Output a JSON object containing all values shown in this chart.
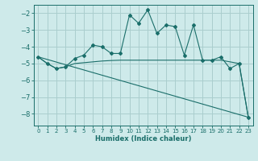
{
  "xlabel": "Humidex (Indice chaleur)",
  "background_color": "#ceeaea",
  "grid_color": "#aacece",
  "line_color": "#1a6e6a",
  "xlim": [
    -0.5,
    23.5
  ],
  "ylim": [
    -8.7,
    -1.5
  ],
  "yticks": [
    -8,
    -7,
    -6,
    -5,
    -4,
    -3,
    -2
  ],
  "xticks": [
    0,
    1,
    2,
    3,
    4,
    5,
    6,
    7,
    8,
    9,
    10,
    11,
    12,
    13,
    14,
    15,
    16,
    17,
    18,
    19,
    20,
    21,
    22,
    23
  ],
  "series0_x": [
    0,
    1,
    2,
    3,
    4,
    5,
    6,
    7,
    8,
    9,
    10,
    11,
    12,
    13,
    14,
    15,
    16,
    17,
    18,
    19,
    20,
    21,
    22,
    23
  ],
  "series0_y": [
    -4.6,
    -5.0,
    -5.3,
    -5.2,
    -4.7,
    -4.5,
    -3.9,
    -4.0,
    -4.4,
    -4.4,
    -2.1,
    -2.6,
    -1.8,
    -3.2,
    -2.7,
    -2.8,
    -4.5,
    -2.7,
    -4.8,
    -4.8,
    -4.6,
    -5.3,
    -5.0,
    -8.2
  ],
  "series1_x": [
    0,
    1,
    2,
    3,
    4,
    5,
    6,
    7,
    8,
    9,
    10,
    11,
    12,
    13,
    14,
    15,
    16,
    17,
    18,
    19,
    20,
    21,
    22,
    23
  ],
  "series1_y": [
    -4.6,
    -5.0,
    -5.3,
    -5.2,
    -5.0,
    -4.95,
    -4.9,
    -4.85,
    -4.82,
    -4.8,
    -4.8,
    -4.8,
    -4.8,
    -4.8,
    -4.8,
    -4.8,
    -4.8,
    -4.8,
    -4.8,
    -4.8,
    -4.8,
    -4.9,
    -5.0,
    -8.2
  ],
  "series2_x": [
    0,
    23
  ],
  "series2_y": [
    -4.6,
    -8.2
  ]
}
